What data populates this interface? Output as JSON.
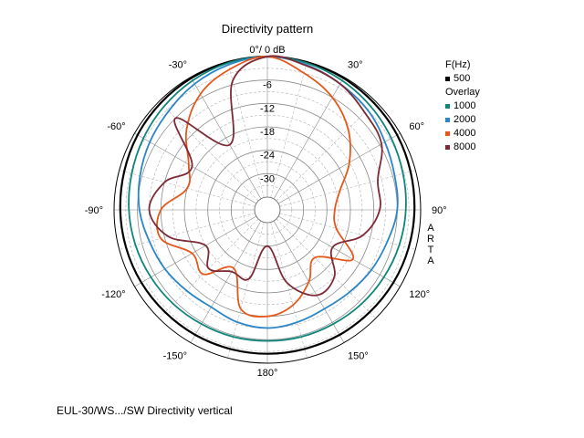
{
  "chart_data": {
    "type": "polar",
    "title": "Directivity pattern",
    "caption": "EUL-30/WS.../SW  Directivity vertical",
    "watermark": "ARTA",
    "radial_ticks": [
      "-6",
      "-12",
      "-18",
      "-24",
      "-30"
    ],
    "radial_tick_values": [
      -6,
      -12,
      -18,
      -24,
      -30
    ],
    "r_range": [
      -36,
      0
    ],
    "angle_labels": [
      {
        "angle": 0,
        "text": "0°/ 0 dB"
      },
      {
        "angle": 30,
        "text": "30°"
      },
      {
        "angle": 60,
        "text": "60°"
      },
      {
        "angle": 90,
        "text": "90°"
      },
      {
        "angle": 120,
        "text": "120°"
      },
      {
        "angle": 150,
        "text": "150°"
      },
      {
        "angle": 180,
        "text": "180°"
      },
      {
        "angle": -150,
        "text": "-150°"
      },
      {
        "angle": -120,
        "text": "-120°"
      },
      {
        "angle": -90,
        "text": "-90°"
      },
      {
        "angle": -60,
        "text": "-60°"
      },
      {
        "angle": -30,
        "text": "-30°"
      }
    ],
    "legend": {
      "freq_header": "F(Hz)",
      "primary": {
        "name": "500",
        "color": "#000000"
      },
      "overlay_header": "Overlay",
      "overlays": [
        {
          "name": "1000",
          "color": "#10857a"
        },
        {
          "name": "2000",
          "color": "#2a86c8"
        },
        {
          "name": "4000",
          "color": "#e4581b"
        },
        {
          "name": "8000",
          "color": "#7d2a36"
        }
      ]
    },
    "angles": [
      0,
      15,
      30,
      45,
      60,
      75,
      90,
      105,
      120,
      135,
      150,
      165,
      180,
      -165,
      -150,
      -135,
      -120,
      -105,
      -90,
      -75,
      -60,
      -45,
      -30,
      -15
    ],
    "series": [
      {
        "name": "500",
        "color": "#000000",
        "values": [
          0,
          -0.1,
          -0.3,
          -0.6,
          -0.9,
          -1.3,
          -1.6,
          -1.8,
          -2.0,
          -2.2,
          -2.3,
          -2.4,
          -2.4,
          -2.4,
          -2.3,
          -2.2,
          -2.0,
          -1.8,
          -1.6,
          -1.3,
          -0.9,
          -0.6,
          -0.3,
          -0.1
        ]
      },
      {
        "name": "1000",
        "color": "#10857a",
        "values": [
          0,
          -0.3,
          -1.0,
          -1.8,
          -2.6,
          -3.3,
          -3.8,
          -4.3,
          -4.8,
          -5.2,
          -5.5,
          -5.6,
          -5.7,
          -5.6,
          -5.5,
          -5.2,
          -4.8,
          -4.3,
          -3.8,
          -3.3,
          -2.6,
          -1.8,
          -1.0,
          -0.3
        ]
      },
      {
        "name": "2000",
        "color": "#2a86c8",
        "values": [
          0,
          -0.8,
          -2.0,
          -3.0,
          -4.5,
          -5.5,
          -6.0,
          -7.5,
          -8.5,
          -9.5,
          -10.0,
          -9.5,
          -9.0,
          -9.5,
          -10.5,
          -10.0,
          -9.0,
          -8.0,
          -6.5,
          -5.5,
          -4.5,
          -3.5,
          -2.0,
          -0.8
        ]
      },
      {
        "name": "4000",
        "color": "#e4581b",
        "values": [
          0,
          -3,
          -6,
          -10,
          -15,
          -20,
          -22,
          -21,
          -14,
          -22,
          -18,
          -14,
          -12,
          -13,
          -22,
          -16,
          -17,
          -11,
          -12,
          -18,
          -16,
          -10,
          -5,
          -2
        ]
      },
      {
        "name": "8000",
        "color": "#7d2a36",
        "values": [
          0,
          -1.0,
          -2.0,
          -4.0,
          -5.5,
          -10.0,
          -10.5,
          -14.0,
          -20.0,
          -15.0,
          -14.0,
          -20.0,
          -30.0,
          -21.0,
          -21.0,
          -18.0,
          -21.0,
          -13.0,
          -9.0,
          -12.0,
          -17.0,
          -6.0,
          -20.0,
          -5.0
        ]
      }
    ]
  }
}
